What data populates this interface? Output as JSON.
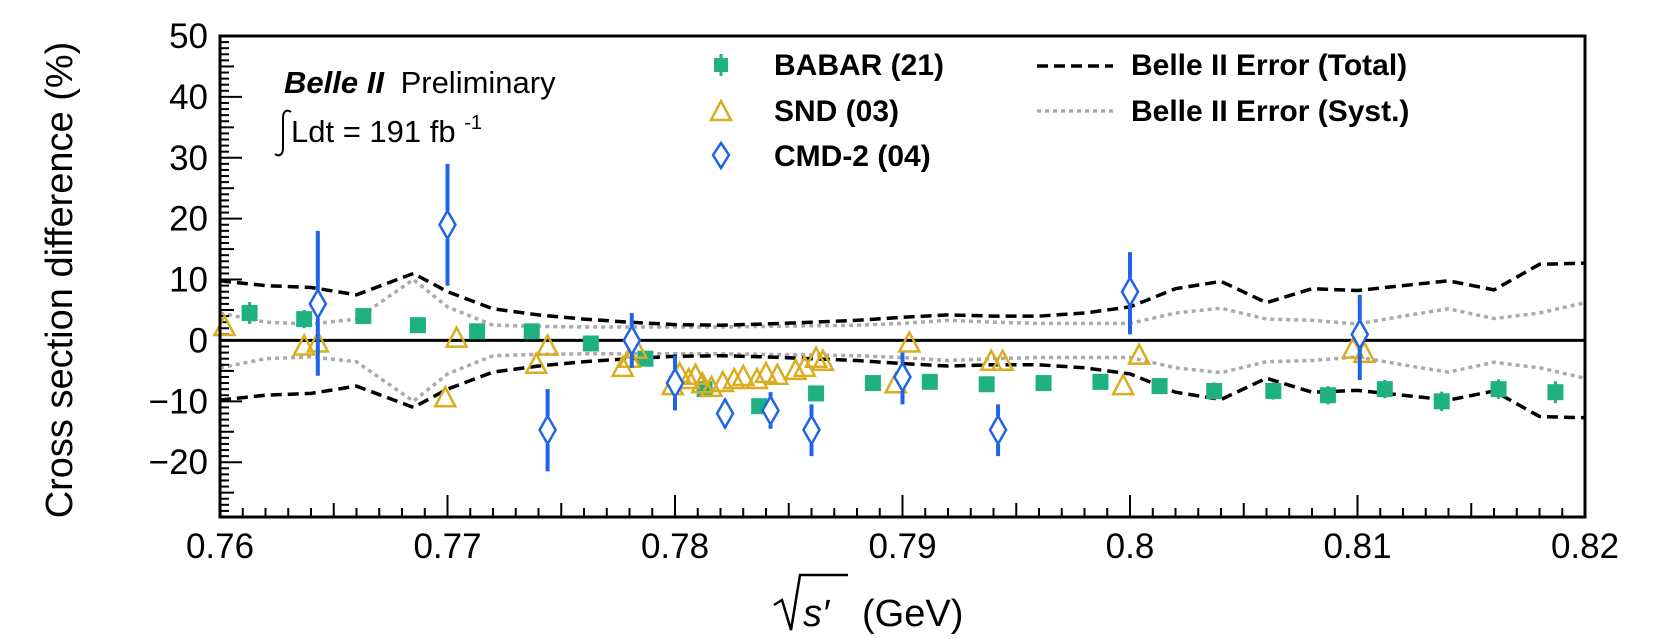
{
  "chart_data": {
    "type": "scatter",
    "title": "",
    "xlabel_sym": "s′",
    "xlabel_unit": "(GeV)",
    "ylabel": "Cross section difference (%)",
    "xlim": [
      0.76,
      0.82
    ],
    "ylim": [
      -29,
      50
    ],
    "xticks": [
      0.76,
      0.77,
      0.78,
      0.79,
      0.8,
      0.81,
      0.82
    ],
    "xtick_labels": [
      "0.76",
      "0.77",
      "0.78",
      "0.79",
      "0.8",
      "0.81",
      "0.82"
    ],
    "yticks": [
      -20,
      -10,
      0,
      10,
      20,
      30,
      40,
      50
    ],
    "ytick_labels": [
      "−20",
      "−10",
      "0",
      "10",
      "20",
      "30",
      "40",
      "50"
    ],
    "annotation": {
      "experiment": "Belle II",
      "status": "Preliminary",
      "lumi_prefix": "Ldt = 191 fb",
      "lumi_exp": "-1"
    },
    "legend": {
      "babar": "BABAR (21)",
      "snd": "SND (03)",
      "cmd2": "CMD-2 (04)",
      "total": "Belle II Error (Total)",
      "syst": "Belle II Error (Syst.)"
    },
    "colors": {
      "babar": "#1fb182",
      "snd": "#d9ad1f",
      "cmd2": "#1f64e6",
      "total": "#000000",
      "syst": "#aaaaaa"
    },
    "series": [
      {
        "name": "BABAR (21)",
        "marker": "square",
        "points": [
          {
            "x": 0.7613,
            "y": 4.5,
            "err": 1.8
          },
          {
            "x": 0.7637,
            "y": 3.5,
            "err": 1.5
          },
          {
            "x": 0.7663,
            "y": 4.0,
            "err": 1.3
          },
          {
            "x": 0.7687,
            "y": 2.5,
            "err": 1.3
          },
          {
            "x": 0.7713,
            "y": 1.5,
            "err": 1.2
          },
          {
            "x": 0.7737,
            "y": 1.5,
            "err": 1.2
          },
          {
            "x": 0.7763,
            "y": -0.5,
            "err": 1.2
          },
          {
            "x": 0.7787,
            "y": -3.0,
            "err": 1.2
          },
          {
            "x": 0.7813,
            "y": -8.0,
            "err": 1.3
          },
          {
            "x": 0.7837,
            "y": -10.8,
            "err": 1.3
          },
          {
            "x": 0.7862,
            "y": -8.7,
            "err": 1.3
          },
          {
            "x": 0.7887,
            "y": -7.0,
            "err": 1.2
          },
          {
            "x": 0.7912,
            "y": -6.8,
            "err": 1.2
          },
          {
            "x": 0.7937,
            "y": -7.2,
            "err": 1.2
          },
          {
            "x": 0.7962,
            "y": -7.0,
            "err": 1.2
          },
          {
            "x": 0.7987,
            "y": -6.8,
            "err": 1.2
          },
          {
            "x": 0.8013,
            "y": -7.5,
            "err": 1.2
          },
          {
            "x": 0.8037,
            "y": -8.3,
            "err": 1.4
          },
          {
            "x": 0.8063,
            "y": -8.3,
            "err": 1.4
          },
          {
            "x": 0.8087,
            "y": -9.0,
            "err": 1.5
          },
          {
            "x": 0.8112,
            "y": -8.0,
            "err": 1.5
          },
          {
            "x": 0.8137,
            "y": -10.0,
            "err": 1.6
          },
          {
            "x": 0.8162,
            "y": -8.0,
            "err": 1.6
          },
          {
            "x": 0.8187,
            "y": -8.5,
            "err": 1.8
          }
        ]
      },
      {
        "name": "SND (03)",
        "marker": "triangle",
        "points": [
          {
            "x": 0.7602,
            "y": 2.2
          },
          {
            "x": 0.7637,
            "y": -1.0
          },
          {
            "x": 0.7643,
            "y": -0.5
          },
          {
            "x": 0.7699,
            "y": -9.5
          },
          {
            "x": 0.7704,
            "y": 0.3
          },
          {
            "x": 0.7739,
            "y": -4.0
          },
          {
            "x": 0.7744,
            "y": -1.0
          },
          {
            "x": 0.7777,
            "y": -4.5
          },
          {
            "x": 0.778,
            "y": -3.0
          },
          {
            "x": 0.7783,
            "y": -1.5
          },
          {
            "x": 0.7799,
            "y": -7.5
          },
          {
            "x": 0.7802,
            "y": -5.5
          },
          {
            "x": 0.7806,
            "y": -6.5
          },
          {
            "x": 0.7809,
            "y": -5.8
          },
          {
            "x": 0.7812,
            "y": -7.2
          },
          {
            "x": 0.7816,
            "y": -7.8
          },
          {
            "x": 0.7821,
            "y": -7.0
          },
          {
            "x": 0.7826,
            "y": -6.5
          },
          {
            "x": 0.783,
            "y": -6.0
          },
          {
            "x": 0.7836,
            "y": -6.5
          },
          {
            "x": 0.784,
            "y": -5.5
          },
          {
            "x": 0.7845,
            "y": -5.8
          },
          {
            "x": 0.7853,
            "y": -5.0
          },
          {
            "x": 0.7857,
            "y": -4.5
          },
          {
            "x": 0.7862,
            "y": -3.0
          },
          {
            "x": 0.7865,
            "y": -3.5
          },
          {
            "x": 0.7897,
            "y": -7.2
          },
          {
            "x": 0.7903,
            "y": -0.5
          },
          {
            "x": 0.7939,
            "y": -3.5
          },
          {
            "x": 0.7944,
            "y": -3.5
          },
          {
            "x": 0.7997,
            "y": -7.5
          },
          {
            "x": 0.8004,
            "y": -2.5
          },
          {
            "x": 0.8098,
            "y": -1.5
          },
          {
            "x": 0.8103,
            "y": -2.2
          }
        ]
      },
      {
        "name": "CMD-2 (04)",
        "marker": "diamond",
        "points": [
          {
            "x": 0.7643,
            "y": 6.0,
            "lo": -5.8,
            "hi": 18.0
          },
          {
            "x": 0.77,
            "y": 19.0,
            "lo": 9.0,
            "hi": 29.0
          },
          {
            "x": 0.7744,
            "y": -14.7,
            "lo": -21.5,
            "hi": -8.0
          },
          {
            "x": 0.7781,
            "y": 0.0,
            "lo": -4.5,
            "hi": 4.5
          },
          {
            "x": 0.78,
            "y": -7.0,
            "lo": -11.5,
            "hi": -2.5
          },
          {
            "x": 0.7822,
            "y": -12.0,
            "lo": -13.5,
            "hi": -10.5
          },
          {
            "x": 0.7842,
            "y": -11.5,
            "lo": -14.5,
            "hi": -8.5
          },
          {
            "x": 0.786,
            "y": -14.7,
            "lo": -19.0,
            "hi": -10.5
          },
          {
            "x": 0.79,
            "y": -6.0,
            "lo": -10.5,
            "hi": -2.0
          },
          {
            "x": 0.7942,
            "y": -14.7,
            "lo": -19.0,
            "hi": -10.5
          },
          {
            "x": 0.8,
            "y": 8.0,
            "lo": 1.0,
            "hi": 14.5
          },
          {
            "x": 0.8101,
            "y": 1.0,
            "lo": -6.5,
            "hi": 7.5
          }
        ]
      }
    ],
    "band_total": {
      "x": [
        0.76,
        0.762,
        0.764,
        0.766,
        0.7685,
        0.77,
        0.772,
        0.774,
        0.776,
        0.778,
        0.78,
        0.782,
        0.784,
        0.786,
        0.788,
        0.79,
        0.792,
        0.794,
        0.796,
        0.798,
        0.8,
        0.802,
        0.804,
        0.806,
        0.808,
        0.81,
        0.812,
        0.814,
        0.816,
        0.818,
        0.82
      ],
      "upper": [
        9.8,
        9.0,
        8.7,
        7.5,
        11.0,
        8.0,
        5.2,
        4.2,
        3.5,
        3.0,
        2.6,
        2.5,
        2.7,
        3.0,
        3.3,
        3.8,
        4.2,
        4.0,
        4.0,
        4.5,
        5.5,
        8.5,
        9.7,
        6.2,
        8.5,
        8.2,
        9.0,
        9.8,
        8.3,
        12.5,
        12.7
      ],
      "lower": [
        -9.8,
        -9.0,
        -8.7,
        -7.5,
        -11.0,
        -8.0,
        -5.2,
        -4.2,
        -3.5,
        -3.0,
        -2.6,
        -2.5,
        -2.7,
        -3.0,
        -3.3,
        -3.8,
        -4.2,
        -4.0,
        -4.0,
        -4.5,
        -5.5,
        -8.5,
        -9.7,
        -6.2,
        -8.5,
        -8.2,
        -9.0,
        -9.8,
        -8.3,
        -12.5,
        -12.7
      ]
    },
    "band_syst": {
      "x": [
        0.76,
        0.762,
        0.764,
        0.766,
        0.7685,
        0.77,
        0.772,
        0.774,
        0.776,
        0.778,
        0.78,
        0.782,
        0.784,
        0.786,
        0.788,
        0.79,
        0.792,
        0.794,
        0.796,
        0.798,
        0.8,
        0.802,
        0.804,
        0.806,
        0.808,
        0.81,
        0.812,
        0.814,
        0.816,
        0.818,
        0.82
      ],
      "upper": [
        4.5,
        3.0,
        2.7,
        3.5,
        10.0,
        5.5,
        2.5,
        2.3,
        2.2,
        2.2,
        2.2,
        2.2,
        2.3,
        2.4,
        2.5,
        2.8,
        3.3,
        3.0,
        2.8,
        2.8,
        2.8,
        4.5,
        5.3,
        3.5,
        3.3,
        2.7,
        4.0,
        5.2,
        3.6,
        4.5,
        6.2
      ],
      "lower": [
        -4.5,
        -3.0,
        -2.7,
        -3.5,
        -10.0,
        -5.5,
        -2.5,
        -2.3,
        -2.2,
        -2.2,
        -2.2,
        -2.2,
        -2.3,
        -2.4,
        -2.5,
        -2.8,
        -3.3,
        -3.0,
        -2.8,
        -2.8,
        -2.8,
        -4.5,
        -5.3,
        -3.5,
        -3.3,
        -2.7,
        -4.0,
        -5.2,
        -3.6,
        -4.5,
        -6.2
      ]
    }
  }
}
